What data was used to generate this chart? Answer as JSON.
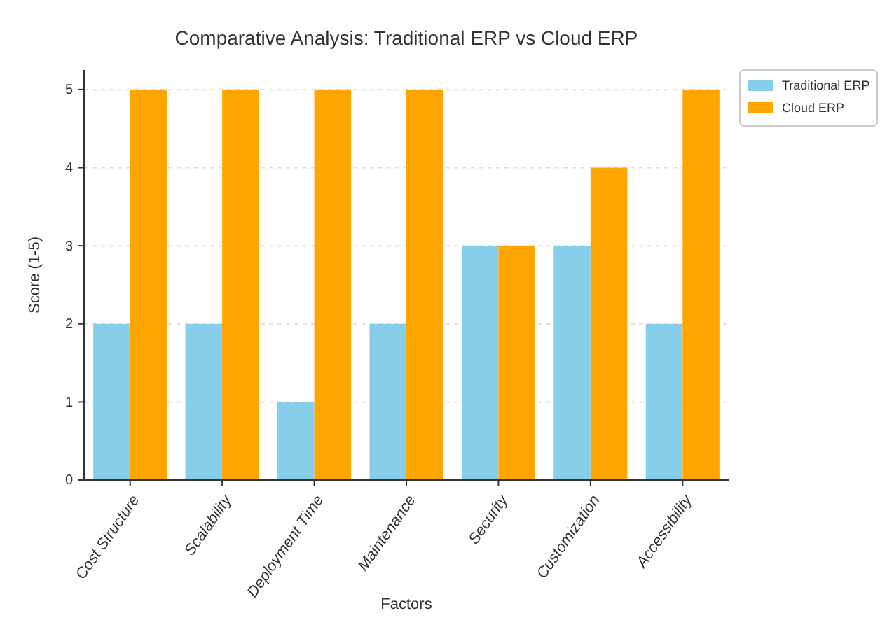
{
  "chart_data": {
    "type": "bar",
    "title": "Comparative Analysis: Traditional ERP vs Cloud ERP",
    "xlabel": "Factors",
    "ylabel": "Score (1-5)",
    "categories": [
      "Cost Structure",
      "Scalability",
      "Deployment Time",
      "Maintenance",
      "Security",
      "Customization",
      "Accessibility"
    ],
    "series": [
      {
        "name": "Traditional ERP",
        "color": "#87ceeb",
        "values": [
          2,
          2,
          1,
          2,
          3,
          3,
          2
        ]
      },
      {
        "name": "Cloud ERP",
        "color": "#ffa500",
        "values": [
          5,
          5,
          5,
          5,
          3,
          4,
          5
        ]
      }
    ],
    "ylim": [
      0,
      5.25
    ],
    "yticks": [
      0,
      1,
      2,
      3,
      4,
      5
    ],
    "grid": "y",
    "legend": "top right"
  }
}
